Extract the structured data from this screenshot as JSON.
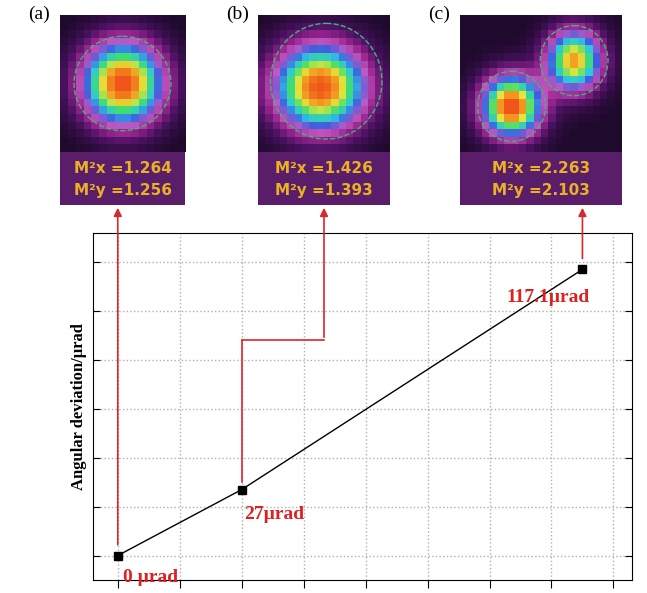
{
  "panels": [
    {
      "label": "(a)",
      "m2x": "M²x =1.264",
      "m2y": "M²y =1.256"
    },
    {
      "label": "(b)",
      "m2x": "M²x =1.426",
      "m2y": "M²y =1.393"
    },
    {
      "label": "(c)",
      "m2x": "M²x =2.263",
      "m2y": "M²y =2.103"
    }
  ],
  "chart_data": {
    "type": "line",
    "y_label": "Angular deviation/μrad",
    "x": [
      0,
      2,
      7.5
    ],
    "values": [
      0,
      27,
      117.1
    ],
    "value_labels": [
      "0 µrad",
      "27µrad",
      "117.1µrad"
    ],
    "color": "#000000",
    "marker": "square",
    "line_style": "solid",
    "xlim": [
      -0.4,
      8.3
    ],
    "xticks": [
      0,
      1,
      2,
      3,
      4,
      5,
      6,
      7,
      8
    ],
    "ylim": [
      -10,
      132
    ],
    "yticks": [
      0,
      20,
      40,
      60,
      80,
      100,
      120
    ],
    "grid": true,
    "tick_labels": false,
    "data_labels": true
  }
}
